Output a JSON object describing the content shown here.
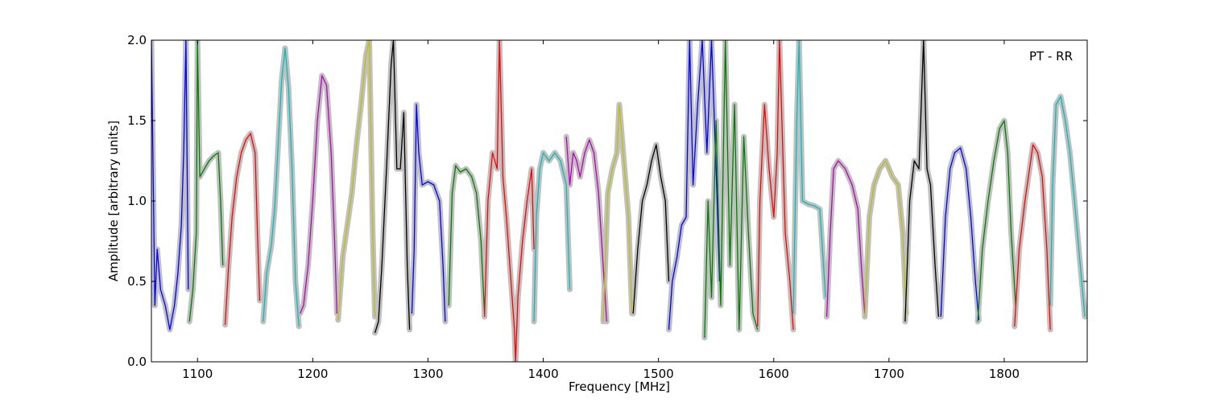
{
  "chart_data": {
    "type": "line",
    "annotation": "PT - RR",
    "xlabel": "Frequency [MHz]",
    "ylabel": "Amplitude [arbitrary units]",
    "xlim": [
      1060,
      1872
    ],
    "ylim": [
      0.0,
      2.0
    ],
    "x_ticks": [
      1100,
      1200,
      1300,
      1400,
      1500,
      1600,
      1700,
      1800
    ],
    "x_tick_labels": [
      "1100",
      "1200",
      "1300",
      "1400",
      "1500",
      "1600",
      "1700",
      "1800"
    ],
    "y_ticks": [
      0.0,
      0.5,
      1.0,
      1.5,
      2.0
    ],
    "y_tick_labels": [
      "0.0",
      "0.5",
      "1.0",
      "1.5",
      "2.0"
    ],
    "grid": false,
    "background_color": "#c0c0c0",
    "series": [
      {
        "color": "#0000ff",
        "x": [
          1060,
          1063,
          1065,
          1068,
          1072,
          1076,
          1080,
          1083,
          1086,
          1088,
          1090,
          1092
        ],
        "y": [
          2.0,
          0.35,
          0.7,
          0.45,
          0.35,
          0.2,
          0.35,
          0.55,
          0.85,
          1.3,
          2.0,
          0.45
        ]
      },
      {
        "color": "#008000",
        "x": [
          1093,
          1096,
          1099,
          1100,
          1102,
          1106,
          1110,
          1114,
          1118,
          1120,
          1122
        ],
        "y": [
          0.25,
          0.45,
          0.8,
          2.0,
          1.15,
          1.2,
          1.25,
          1.28,
          1.3,
          1.0,
          0.6
        ]
      },
      {
        "color": "#ff0000",
        "x": [
          1124,
          1127,
          1130,
          1134,
          1138,
          1142,
          1146,
          1150,
          1152,
          1154
        ],
        "y": [
          0.23,
          0.6,
          0.9,
          1.15,
          1.3,
          1.38,
          1.42,
          1.3,
          0.8,
          0.38
        ]
      },
      {
        "color": "#00bfbf",
        "x": [
          1157,
          1160,
          1164,
          1167,
          1170,
          1173,
          1176,
          1179,
          1182,
          1185,
          1188
        ],
        "y": [
          0.25,
          0.55,
          0.72,
          0.95,
          1.35,
          1.75,
          1.95,
          1.7,
          1.2,
          0.5,
          0.22
        ]
      },
      {
        "color": "#bf00bf",
        "x": [
          1189,
          1192,
          1196,
          1200,
          1204,
          1208,
          1212,
          1216,
          1219,
          1221
        ],
        "y": [
          0.3,
          0.35,
          0.6,
          1.0,
          1.5,
          1.78,
          1.72,
          1.3,
          0.75,
          0.3
        ]
      },
      {
        "color": "#bfbf00",
        "x": [
          1222,
          1226,
          1230,
          1234,
          1238,
          1242,
          1246,
          1249,
          1252,
          1254
        ],
        "y": [
          0.26,
          0.65,
          0.85,
          1.05,
          1.35,
          1.6,
          1.9,
          2.0,
          0.8,
          0.28
        ]
      },
      {
        "color": "#000000",
        "x": [
          1254,
          1257,
          1260,
          1264,
          1268,
          1270,
          1273,
          1276,
          1279,
          1282,
          1284
        ],
        "y": [
          0.18,
          0.25,
          0.6,
          1.2,
          1.85,
          2.0,
          1.2,
          1.2,
          1.55,
          0.6,
          0.2
        ]
      },
      {
        "color": "#0000ff",
        "x": [
          1286,
          1288,
          1290,
          1292,
          1295,
          1300,
          1305,
          1310,
          1313,
          1315
        ],
        "y": [
          0.3,
          0.7,
          1.6,
          1.3,
          1.1,
          1.12,
          1.1,
          1.0,
          0.6,
          0.25
        ]
      },
      {
        "color": "#008000",
        "x": [
          1318,
          1321,
          1324,
          1328,
          1333,
          1338,
          1342,
          1346,
          1349
        ],
        "y": [
          0.35,
          1.05,
          1.22,
          1.18,
          1.2,
          1.15,
          1.05,
          0.75,
          0.3
        ]
      },
      {
        "color": "#ff0000",
        "x": [
          1349,
          1352,
          1356,
          1360,
          1362,
          1365,
          1368,
          1372,
          1375,
          1376,
          1378,
          1382,
          1386,
          1390,
          1392
        ],
        "y": [
          0.28,
          1.0,
          1.3,
          1.2,
          2.0,
          1.15,
          0.9,
          0.5,
          0.2,
          0.0,
          0.4,
          0.75,
          1.0,
          1.2,
          0.7
        ]
      },
      {
        "color": "#00bfbf",
        "x": [
          1392,
          1394,
          1397,
          1400,
          1405,
          1410,
          1415,
          1420,
          1423
        ],
        "y": [
          0.25,
          0.9,
          1.2,
          1.3,
          1.25,
          1.3,
          1.25,
          1.1,
          0.45
        ]
      },
      {
        "color": "#bf00bf",
        "x": [
          1420,
          1423,
          1426,
          1429,
          1432,
          1436,
          1440,
          1444,
          1448,
          1452,
          1455
        ],
        "y": [
          1.4,
          1.1,
          1.3,
          1.25,
          1.15,
          1.3,
          1.38,
          1.3,
          1.05,
          0.6,
          0.25
        ]
      },
      {
        "color": "#bfbf00",
        "x": [
          1452,
          1456,
          1460,
          1464,
          1466,
          1470,
          1474,
          1477
        ],
        "y": [
          0.25,
          1.05,
          1.2,
          1.3,
          1.6,
          1.25,
          0.9,
          0.3
        ]
      },
      {
        "color": "#000000",
        "x": [
          1478,
          1482,
          1486,
          1490,
          1494,
          1498,
          1502,
          1506,
          1509
        ],
        "y": [
          0.3,
          0.7,
          1.0,
          1.1,
          1.25,
          1.35,
          1.15,
          1.0,
          0.5
        ]
      },
      {
        "color": "#0000ff",
        "x": [
          1509,
          1512,
          1516,
          1520,
          1524,
          1527,
          1530,
          1534,
          1538,
          1542,
          1546,
          1550,
          1553
        ],
        "y": [
          0.2,
          0.5,
          0.65,
          0.85,
          0.9,
          2.0,
          1.1,
          1.6,
          2.0,
          1.3,
          2.0,
          1.2,
          0.5
        ]
      },
      {
        "color": "#008000",
        "x": [
          1540,
          1543,
          1546,
          1550,
          1554,
          1558,
          1562,
          1566,
          1570,
          1574,
          1578,
          1582,
          1586
        ],
        "y": [
          0.15,
          1.0,
          0.4,
          1.5,
          0.35,
          2.0,
          0.6,
          1.6,
          0.2,
          1.4,
          0.8,
          0.3,
          0.2
        ]
      },
      {
        "color": "#ff0000",
        "x": [
          1586,
          1588,
          1592,
          1596,
          1600,
          1603,
          1605,
          1610,
          1614,
          1617
        ],
        "y": [
          0.22,
          1.0,
          1.6,
          1.2,
          0.9,
          1.3,
          2.0,
          0.8,
          0.5,
          0.2
        ]
      },
      {
        "color": "#00bfbf",
        "x": [
          1617,
          1620,
          1622,
          1625,
          1630,
          1635,
          1640,
          1645
        ],
        "y": [
          0.3,
          1.5,
          2.0,
          1.0,
          0.98,
          0.97,
          0.95,
          0.4
        ]
      },
      {
        "color": "#bf00bf",
        "x": [
          1646,
          1649,
          1652,
          1656,
          1662,
          1668,
          1673,
          1676,
          1679
        ],
        "y": [
          0.28,
          0.8,
          1.2,
          1.25,
          1.2,
          1.1,
          0.95,
          0.6,
          0.3
        ]
      },
      {
        "color": "#bfbf00",
        "x": [
          1679,
          1683,
          1687,
          1692,
          1697,
          1703,
          1708,
          1712,
          1715
        ],
        "y": [
          0.28,
          0.9,
          1.1,
          1.2,
          1.25,
          1.15,
          1.1,
          0.8,
          0.3
        ]
      },
      {
        "color": "#000000",
        "x": [
          1714,
          1718,
          1722,
          1726,
          1730,
          1733,
          1736,
          1740,
          1743
        ],
        "y": [
          0.25,
          1.0,
          1.25,
          1.2,
          2.0,
          1.2,
          1.1,
          0.6,
          0.28
        ]
      },
      {
        "color": "#0000ff",
        "x": [
          1745,
          1749,
          1753,
          1757,
          1762,
          1767,
          1771,
          1775,
          1778
        ],
        "y": [
          0.28,
          0.9,
          1.2,
          1.3,
          1.33,
          1.2,
          0.9,
          0.5,
          0.26
        ]
      },
      {
        "color": "#008000",
        "x": [
          1777,
          1781,
          1786,
          1791,
          1796,
          1800,
          1803,
          1806,
          1810
        ],
        "y": [
          0.25,
          0.7,
          1.0,
          1.25,
          1.45,
          1.5,
          1.3,
          0.8,
          0.35
        ]
      },
      {
        "color": "#ff0000",
        "x": [
          1809,
          1813,
          1818,
          1822,
          1825,
          1829,
          1833,
          1837,
          1840
        ],
        "y": [
          0.22,
          0.7,
          1.0,
          1.2,
          1.35,
          1.3,
          1.15,
          0.7,
          0.2
        ]
      },
      {
        "color": "#00bfbf",
        "x": [
          1840,
          1842,
          1845,
          1849,
          1853,
          1857,
          1861,
          1866,
          1870
        ],
        "y": [
          0.35,
          1.1,
          1.6,
          1.65,
          1.5,
          1.3,
          1.0,
          0.6,
          0.28
        ]
      }
    ]
  }
}
